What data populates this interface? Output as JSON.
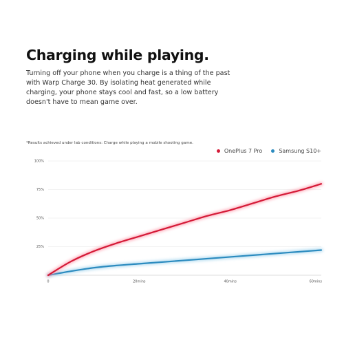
{
  "heading": "Charging while playing.",
  "description_lines": [
    "Turning off your phone when you charge is a thing of the past",
    "with Warp Charge 30. By isolating heat generated while",
    "charging, your phone stays cool and fast, so a low battery",
    "doesn't have to mean game over."
  ],
  "note": "*Results achieved under lab conditions: Charge while playing a mobile shooting game.",
  "colors": {
    "oneplus": "#d41a37",
    "oneplus_glow": "#ff9aaa",
    "samsung": "#2b8bbf",
    "samsung_glow": "#9fd2ec",
    "grid": "#e6e6e6"
  },
  "chart_data": {
    "type": "line",
    "x_tick_labels": [
      "0",
      "20mins",
      "40mins",
      "60mins"
    ],
    "y_tick_labels": [
      "25%",
      "50%",
      "75%",
      "100%"
    ],
    "xlim": [
      0,
      60
    ],
    "ylim": [
      0,
      100
    ],
    "x_ticks": [
      0,
      20,
      40,
      60
    ],
    "y_ticks": [
      25,
      50,
      75,
      100
    ],
    "grid": true,
    "legend_position": "top-right",
    "series": [
      {
        "name": "OnePlus 7 Pro",
        "color_key": "oneplus",
        "x": [
          0,
          5,
          10,
          15,
          20,
          25,
          30,
          35,
          40,
          45,
          50,
          55,
          60
        ],
        "y": [
          0,
          12,
          21,
          28,
          34,
          40,
          46,
          52,
          57,
          63,
          69,
          74,
          80
        ]
      },
      {
        "name": "Samsung S10+",
        "color_key": "samsung",
        "x": [
          0,
          5,
          10,
          15,
          20,
          25,
          30,
          35,
          40,
          45,
          50,
          55,
          60
        ],
        "y": [
          0,
          3.5,
          6.5,
          8.5,
          10,
          11.5,
          13,
          14.5,
          16,
          17.5,
          19,
          20.5,
          22
        ]
      }
    ]
  }
}
